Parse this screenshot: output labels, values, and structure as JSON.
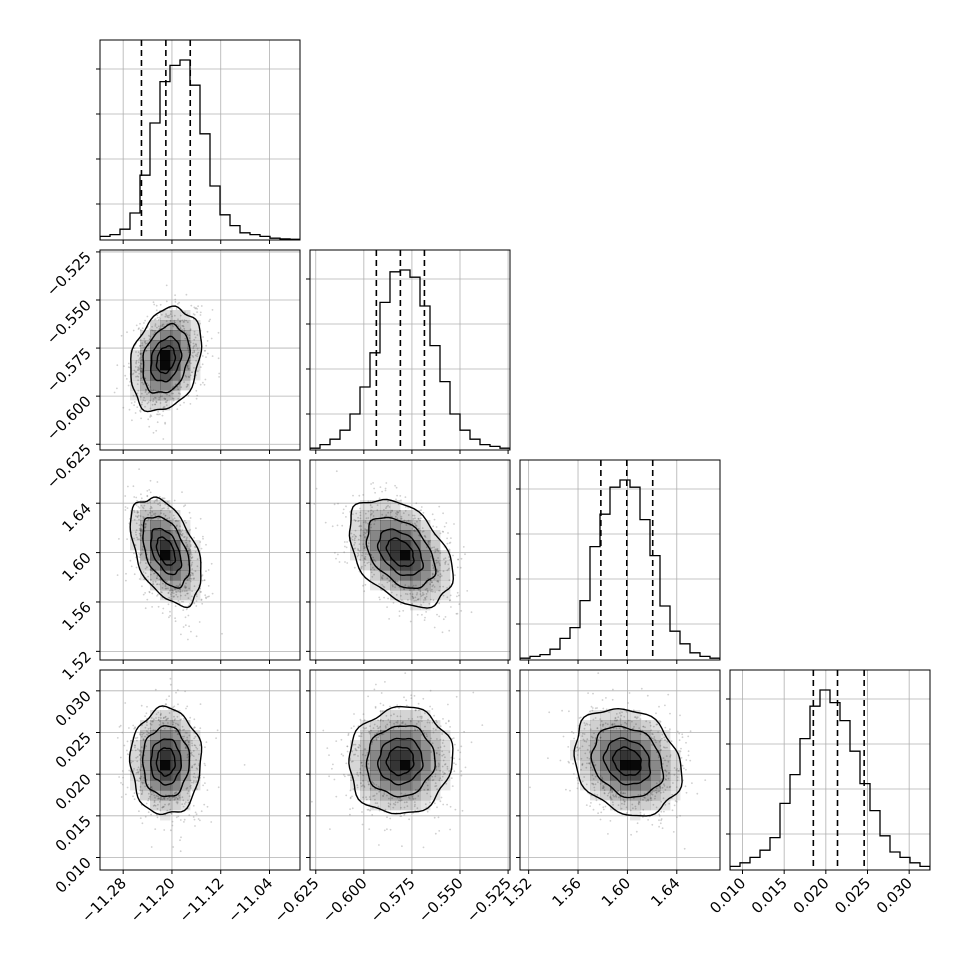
{
  "chart_data": {
    "type": "corner",
    "parameters": [
      {
        "axis_range": [
          -11.318,
          -10.99
        ],
        "ticks": [
          -11.28,
          -11.2,
          -11.12,
          -11.04
        ],
        "tick_labels": [
          "−11.28",
          "−11.20",
          "−11.12",
          "−11.04"
        ],
        "quantiles": [
          -11.25,
          -11.21,
          -11.17
        ],
        "hist_max": 1.0,
        "hist": [
          0.02,
          0.03,
          0.06,
          0.15,
          0.36,
          0.65,
          0.88,
          0.97,
          1.0,
          0.86,
          0.59,
          0.3,
          0.14,
          0.08,
          0.04,
          0.03,
          0.02,
          0.01,
          0.006,
          0.004
        ]
      },
      {
        "axis_range": [
          -0.628,
          -0.524
        ],
        "ticks": [
          -0.625,
          -0.6,
          -0.575,
          -0.55,
          -0.525
        ],
        "tick_labels": [
          "−0.625",
          "−0.600",
          "−0.575",
          "−0.550",
          "−0.525"
        ],
        "quantiles": [
          -0.5935,
          -0.581,
          -0.5685
        ],
        "hist_max": 1.0,
        "hist": [
          0.01,
          0.03,
          0.06,
          0.11,
          0.2,
          0.35,
          0.54,
          0.82,
          0.99,
          1.0,
          0.96,
          0.8,
          0.58,
          0.38,
          0.2,
          0.11,
          0.06,
          0.03,
          0.02,
          0.01
        ]
      },
      {
        "axis_range": [
          1.513,
          1.675
        ],
        "ticks": [
          1.52,
          1.56,
          1.6,
          1.64
        ],
        "tick_labels": [
          "1.52",
          "1.56",
          "1.60",
          "1.64"
        ],
        "quantiles": [
          1.5785,
          1.5995,
          1.6205
        ],
        "hist_max": 1.0,
        "hist": [
          0.01,
          0.02,
          0.03,
          0.06,
          0.12,
          0.18,
          0.33,
          0.63,
          0.81,
          0.96,
          1.0,
          0.96,
          0.78,
          0.58,
          0.3,
          0.16,
          0.09,
          0.04,
          0.02,
          0.01
        ]
      },
      {
        "axis_range": [
          0.0085,
          0.0325
        ],
        "ticks": [
          0.01,
          0.015,
          0.02,
          0.025,
          0.03
        ],
        "tick_labels": [
          "0.010",
          "0.015",
          "0.020",
          "0.025",
          "0.030"
        ],
        "quantiles": [
          0.0185,
          0.0214,
          0.0246
        ],
        "hist_max": 1.0,
        "hist": [
          0.02,
          0.04,
          0.07,
          0.11,
          0.18,
          0.37,
          0.53,
          0.73,
          0.91,
          1.0,
          0.93,
          0.83,
          0.66,
          0.48,
          0.33,
          0.19,
          0.1,
          0.07,
          0.04,
          0.02
        ]
      }
    ],
    "pairs": [
      {
        "x": 0,
        "y": 1,
        "center": [
          -11.21,
          -0.581
        ],
        "sd": [
          0.028,
          0.013
        ],
        "rho": 0.25,
        "mode": [
          -11.21,
          -0.581
        ]
      },
      {
        "x": 0,
        "y": 2,
        "center": [
          -11.21,
          1.601
        ],
        "sd": [
          0.028,
          0.021
        ],
        "rho": -0.45,
        "mode": [
          -11.205,
          1.6
        ]
      },
      {
        "x": 1,
        "y": 2,
        "center": [
          -0.581,
          1.6
        ],
        "sd": [
          0.013,
          0.021
        ],
        "rho": -0.4,
        "mode": [
          -0.58,
          1.596
        ]
      },
      {
        "x": 0,
        "y": 3,
        "center": [
          -11.21,
          0.0215
        ],
        "sd": [
          0.028,
          0.0031
        ],
        "rho": 0.0,
        "mode": [
          -11.208,
          0.0214
        ]
      },
      {
        "x": 1,
        "y": 3,
        "center": [
          -0.581,
          0.0216
        ],
        "sd": [
          0.013,
          0.0031
        ],
        "rho": 0.05,
        "mode": [
          -0.58,
          0.0215
        ]
      },
      {
        "x": 2,
        "y": 3,
        "center": [
          1.6,
          0.0215
        ],
        "sd": [
          0.021,
          0.0031
        ],
        "rho": -0.2,
        "mode": [
          1.602,
          0.0213
        ]
      }
    ],
    "contour_levels_sigma": [
      0.5,
      1.0,
      1.5,
      2.0
    ],
    "grid": true,
    "colors": {
      "line": "#000000",
      "grid": "#b0b0b0",
      "density": "#000000",
      "points": "#777777"
    }
  }
}
